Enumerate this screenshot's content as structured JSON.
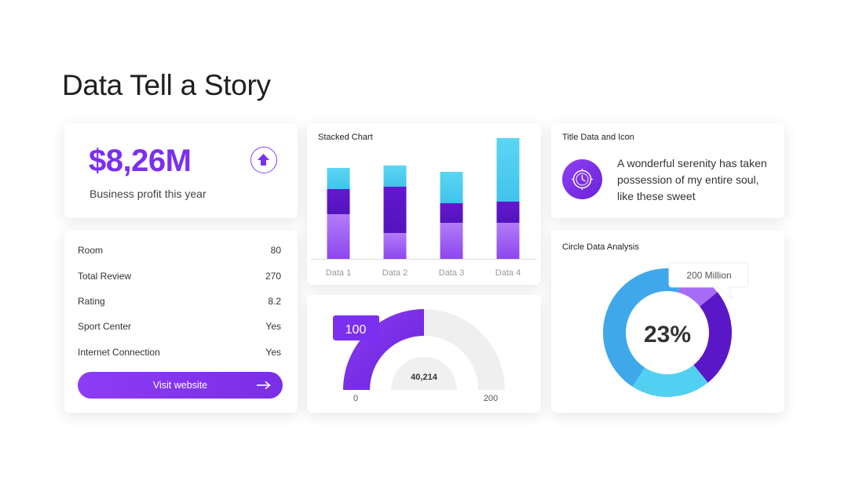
{
  "page": {
    "title": "Data Tell a Story"
  },
  "profit": {
    "value": "$8,26M",
    "label": "Business profit this year",
    "icon": "arrow-up-icon"
  },
  "stats": {
    "rows": [
      {
        "label": "Room",
        "value": "80"
      },
      {
        "label": "Total Review",
        "value": "270"
      },
      {
        "label": "Rating",
        "value": "8.2"
      },
      {
        "label": "Sport Center",
        "value": "Yes"
      },
      {
        "label": "Internet Connection",
        "value": "Yes"
      }
    ],
    "button_label": "Visit website"
  },
  "icon_card": {
    "title": "Title Data and Icon",
    "text": "A wonderful serenity has taken possession of my entire soul, like these sweet",
    "icon": "compass-clock-icon"
  },
  "colors": {
    "purple_light": "#a66cf5",
    "purple_dark": "#5b17c9",
    "cyan": "#4fd0f1",
    "accent": "#7b2ff0"
  },
  "chart_data": [
    {
      "type": "bar",
      "stacked": true,
      "title": "Stacked Chart",
      "categories": [
        "Data 1",
        "Data 2",
        "Data 3",
        "Data 4"
      ],
      "series": [
        {
          "values": [
            57,
            33,
            46,
            46
          ]
        },
        {
          "values": [
            32,
            59,
            25,
            27
          ]
        },
        {
          "values": [
            27,
            27,
            40,
            81
          ]
        }
      ],
      "ylim": [
        0,
        160
      ]
    },
    {
      "type": "gauge",
      "value": 100,
      "min": 0,
      "max": 200,
      "center_label": "40,214",
      "value_label": "100",
      "min_label": "0",
      "max_label": "200"
    },
    {
      "type": "pie",
      "title": "Circle Data Analysis",
      "center_label": "23%",
      "callout": "200 Million",
      "values": [
        10,
        25,
        20,
        45
      ]
    }
  ]
}
